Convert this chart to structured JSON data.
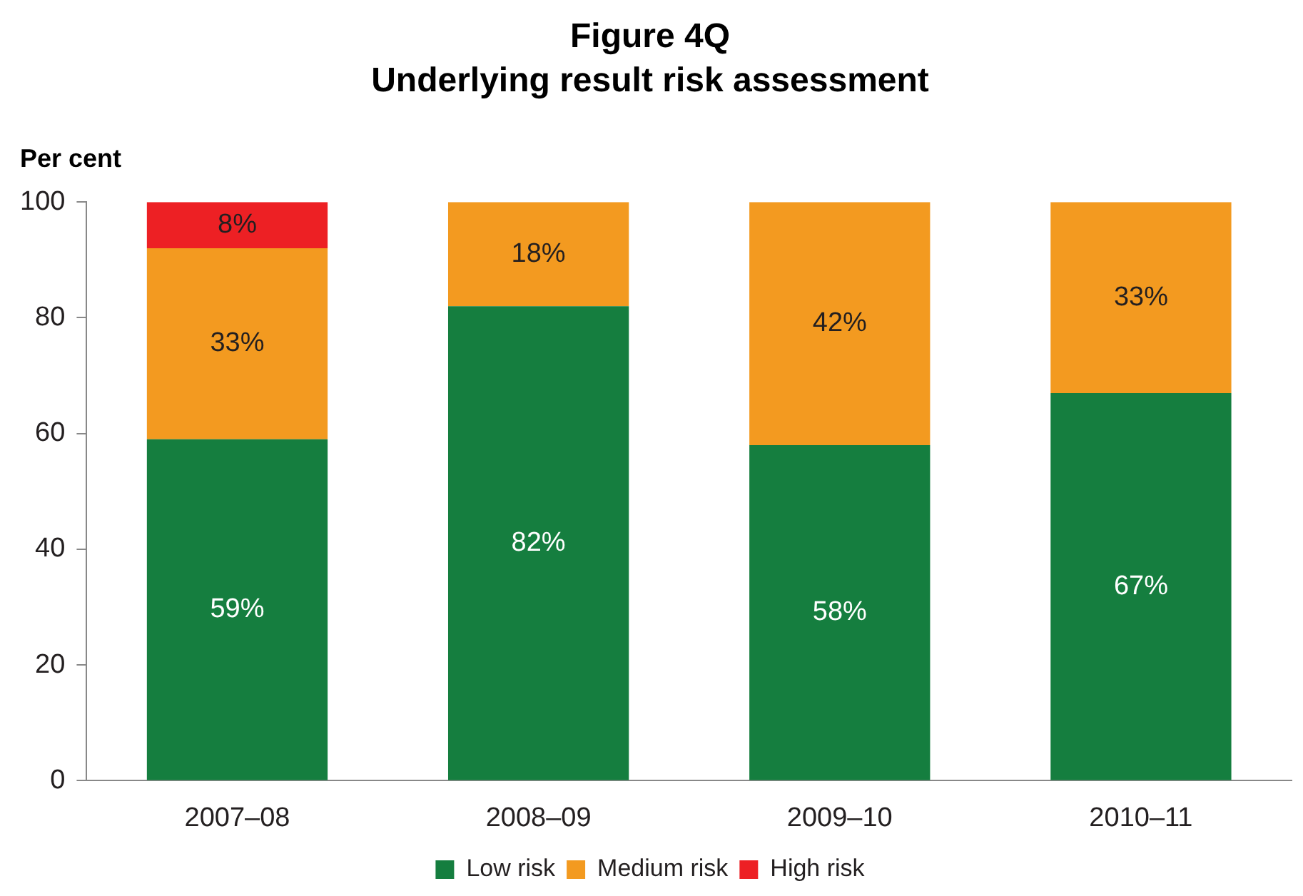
{
  "chart_data": {
    "type": "bar",
    "title": "Figure 4Q",
    "subtitle": "Underlying result risk assessment",
    "ylabel": "Per cent",
    "categories": [
      "2007–08",
      "2008–09",
      "2009–10",
      "2010–11"
    ],
    "series": [
      {
        "name": "Low risk",
        "color": "#157e3f",
        "values": [
          59,
          82,
          58,
          67
        ],
        "value_labels": [
          "59%",
          "82%",
          "58%",
          "67%"
        ]
      },
      {
        "name": "Medium risk",
        "color": "#f39a20",
        "values": [
          33,
          18,
          42,
          33
        ],
        "value_labels": [
          "33%",
          "18%",
          "42%",
          "33%"
        ]
      },
      {
        "name": "High risk",
        "color": "#ed2024",
        "values": [
          8,
          null,
          null,
          null
        ],
        "value_labels": [
          "8%",
          null,
          null,
          null
        ]
      }
    ],
    "stacked": true,
    "ylim": [
      0,
      100
    ],
    "yticks": [
      0,
      20,
      40,
      60,
      80,
      100
    ],
    "grid": false,
    "legend": "bottom"
  }
}
